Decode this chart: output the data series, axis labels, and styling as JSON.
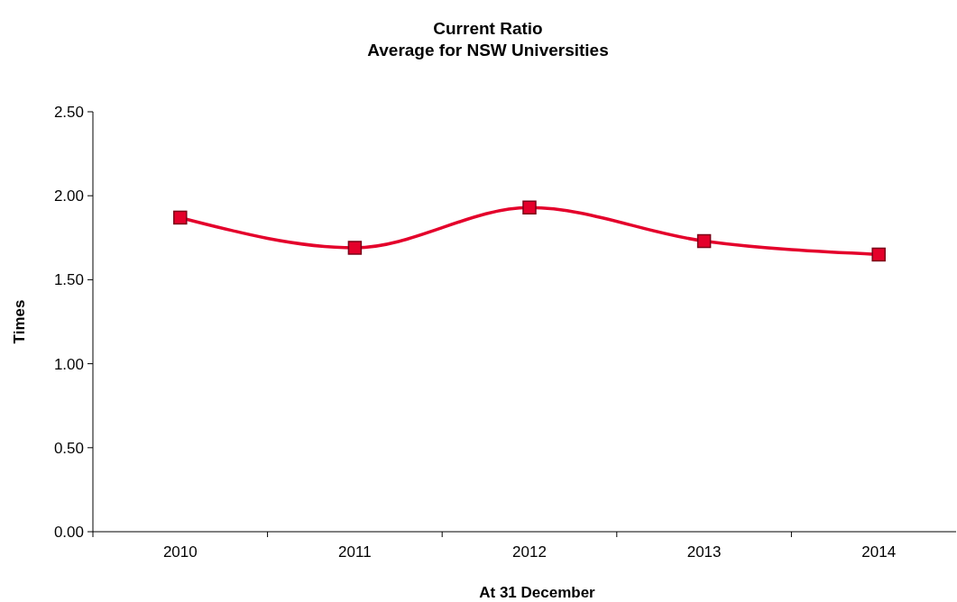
{
  "chart_data": {
    "type": "line",
    "title": "Current Ratio\nAverage for NSW Universities",
    "xlabel": "At 31 December",
    "ylabel": "Times",
    "categories": [
      "2010",
      "2011",
      "2012",
      "2013",
      "2014"
    ],
    "series": [
      {
        "color": "#e4002b",
        "values": [
          1.87,
          1.69,
          1.93,
          1.73,
          1.65
        ]
      }
    ],
    "ylim": [
      0,
      2.5
    ],
    "yticks": [
      {
        "value": 0,
        "label": "0.00"
      },
      {
        "value": 0.5,
        "label": "0.50"
      },
      {
        "value": 1,
        "label": "1.00"
      },
      {
        "value": 1.5,
        "label": "1.50"
      },
      {
        "value": 2,
        "label": "2.00"
      },
      {
        "value": 2.5,
        "label": "2.50"
      }
    ],
    "grid": false,
    "marker": "square",
    "line_style": "solid"
  }
}
